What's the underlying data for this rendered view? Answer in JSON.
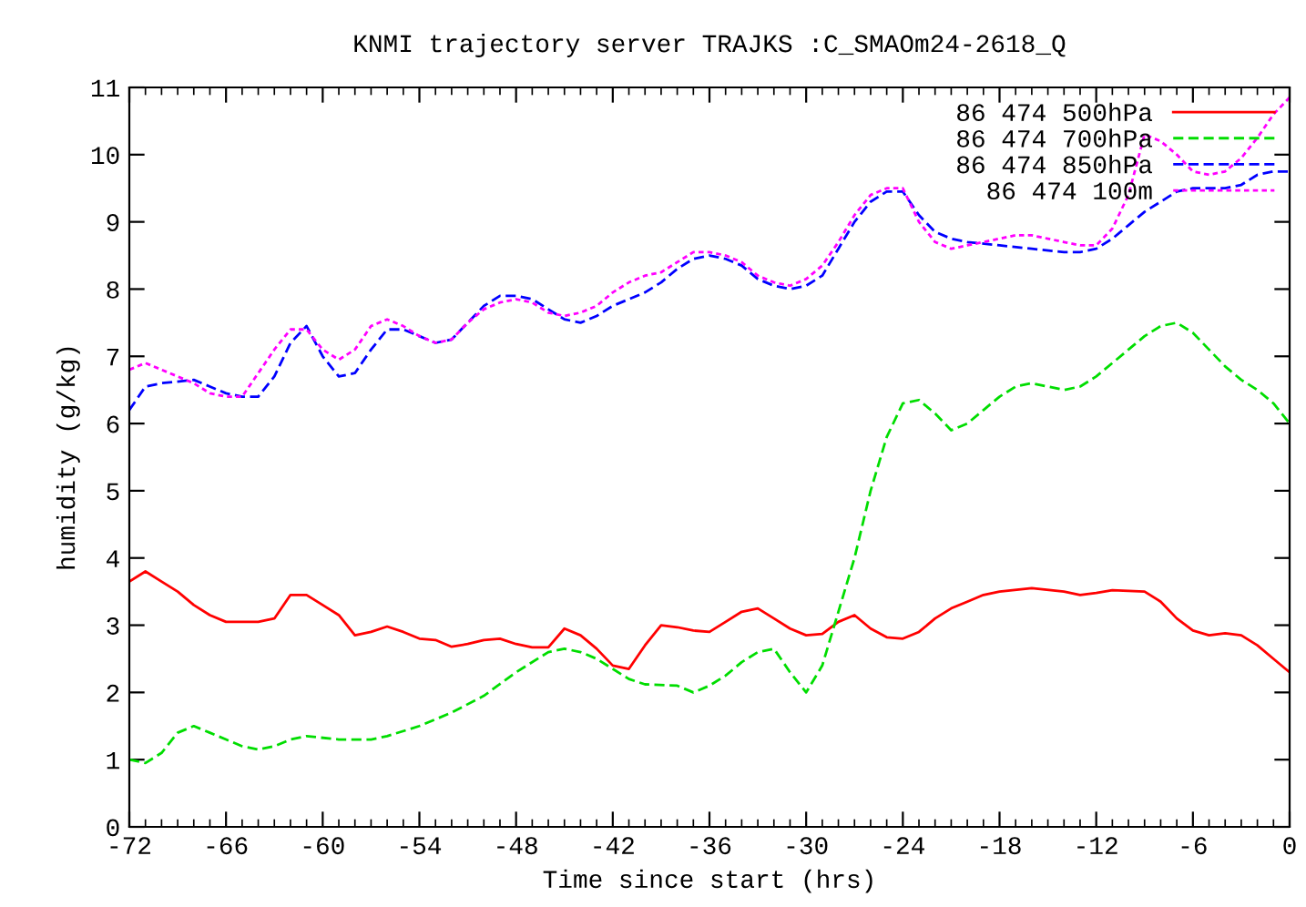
{
  "chart_data": {
    "type": "line",
    "title": "KNMI trajectory server TRAJKS :C_SMAOm24-2618_Q",
    "xlabel": "Time since start (hrs)",
    "ylabel": "humidity (g/kg)",
    "xlim": [
      -72,
      0
    ],
    "xticks": [
      -72,
      -66,
      -60,
      -54,
      -48,
      -42,
      -36,
      -30,
      -24,
      -18,
      -12,
      -6,
      0
    ],
    "ylim": [
      0,
      11
    ],
    "yticks": [
      0,
      1,
      2,
      3,
      4,
      5,
      6,
      7,
      8,
      9,
      10,
      11
    ],
    "grid": false,
    "legend": "top right",
    "marker": "none",
    "series": [
      {
        "name": "86 474 500hPa",
        "color": "#ff0000",
        "line_style": "solid",
        "x": [
          -72,
          -71,
          -70,
          -69,
          -68,
          -67,
          -66,
          -64,
          -63,
          -62,
          -61,
          -60,
          -59,
          -58,
          -57,
          -56,
          -55,
          -54,
          -53,
          -52,
          -51,
          -50,
          -49,
          -48,
          -47,
          -46,
          -45,
          -44,
          -43,
          -42,
          -41,
          -40,
          -39,
          -38,
          -37,
          -36,
          -35,
          -34,
          -33,
          -32,
          -31,
          -30,
          -29,
          -28,
          -27,
          -26,
          -25,
          -24,
          -23,
          -22,
          -21,
          -20,
          -19,
          -18,
          -16,
          -14,
          -13,
          -12,
          -11,
          -9,
          -8,
          -7,
          -6,
          -5,
          -4,
          -3,
          -2,
          -1,
          0
        ],
        "values": [
          3.65,
          3.8,
          3.65,
          3.5,
          3.3,
          3.15,
          3.05,
          3.05,
          3.1,
          3.45,
          3.45,
          3.3,
          3.15,
          2.85,
          2.9,
          2.98,
          2.9,
          2.8,
          2.78,
          2.68,
          2.72,
          2.78,
          2.8,
          2.72,
          2.67,
          2.67,
          2.95,
          2.85,
          2.65,
          2.4,
          2.35,
          2.7,
          3.0,
          2.97,
          2.92,
          2.9,
          3.05,
          3.2,
          3.25,
          3.1,
          2.95,
          2.85,
          2.87,
          3.05,
          3.15,
          2.95,
          2.82,
          2.8,
          2.9,
          3.1,
          3.25,
          3.35,
          3.45,
          3.5,
          3.55,
          3.5,
          3.45,
          3.48,
          3.52,
          3.5,
          3.35,
          3.1,
          2.92,
          2.85,
          2.88,
          2.85,
          2.7,
          2.5,
          2.3
        ]
      },
      {
        "name": "86 474 700hPa",
        "color": "#00dd00",
        "line_style": "dashed",
        "x": [
          -72,
          -71,
          -70,
          -69,
          -68,
          -67,
          -66,
          -65,
          -64,
          -63,
          -62,
          -61,
          -59,
          -57,
          -56,
          -54,
          -52,
          -50,
          -48,
          -46,
          -45,
          -44,
          -43,
          -42,
          -41,
          -40,
          -38,
          -37,
          -36,
          -35,
          -34,
          -33,
          -32,
          -31,
          -30,
          -29,
          -28,
          -27,
          -26,
          -25,
          -24,
          -23,
          -22,
          -21,
          -20,
          -19,
          -18,
          -17,
          -16,
          -15,
          -14,
          -13,
          -12,
          -11,
          -10,
          -9,
          -8,
          -7,
          -6,
          -5,
          -4,
          -3,
          -2,
          -1,
          0
        ],
        "values": [
          1.0,
          0.95,
          1.1,
          1.4,
          1.5,
          1.4,
          1.3,
          1.2,
          1.15,
          1.2,
          1.3,
          1.35,
          1.3,
          1.3,
          1.35,
          1.5,
          1.7,
          1.95,
          2.3,
          2.6,
          2.65,
          2.6,
          2.5,
          2.35,
          2.2,
          2.12,
          2.1,
          2.0,
          2.1,
          2.25,
          2.45,
          2.6,
          2.65,
          2.3,
          2.0,
          2.4,
          3.2,
          4.0,
          5.0,
          5.8,
          6.3,
          6.35,
          6.15,
          5.9,
          6.0,
          6.2,
          6.4,
          6.55,
          6.6,
          6.55,
          6.5,
          6.55,
          6.7,
          6.9,
          7.1,
          7.3,
          7.45,
          7.5,
          7.35,
          7.1,
          6.85,
          6.65,
          6.5,
          6.3,
          6.0
        ]
      },
      {
        "name": "86 474 850hPa",
        "color": "#0000ff",
        "line_style": "dashed",
        "x": [
          -72,
          -71,
          -70,
          -68,
          -67,
          -66,
          -65,
          -64,
          -63,
          -62,
          -61,
          -60,
          -59,
          -58,
          -57,
          -56,
          -55,
          -54,
          -53,
          -52,
          -51,
          -50,
          -49,
          -48,
          -47,
          -46,
          -45,
          -44,
          -43,
          -42,
          -41,
          -40,
          -39,
          -38,
          -37,
          -36,
          -35,
          -34,
          -33,
          -32,
          -31,
          -30,
          -29,
          -28,
          -27,
          -26,
          -25,
          -24,
          -23,
          -22,
          -21,
          -20,
          -18,
          -16,
          -14,
          -13,
          -12,
          -11,
          -10,
          -9,
          -8,
          -7,
          -6,
          -4,
          -3,
          -2,
          -1,
          0
        ],
        "values": [
          6.2,
          6.55,
          6.6,
          6.65,
          6.55,
          6.45,
          6.4,
          6.4,
          6.7,
          7.2,
          7.45,
          7.0,
          6.7,
          6.75,
          7.1,
          7.4,
          7.4,
          7.3,
          7.2,
          7.25,
          7.5,
          7.75,
          7.9,
          7.9,
          7.85,
          7.7,
          7.55,
          7.5,
          7.6,
          7.75,
          7.85,
          7.95,
          8.1,
          8.3,
          8.45,
          8.5,
          8.45,
          8.35,
          8.15,
          8.05,
          8.0,
          8.05,
          8.2,
          8.6,
          9.0,
          9.3,
          9.45,
          9.45,
          9.1,
          8.85,
          8.75,
          8.7,
          8.65,
          8.6,
          8.55,
          8.55,
          8.6,
          8.75,
          8.95,
          9.15,
          9.3,
          9.45,
          9.5,
          9.5,
          9.55,
          9.7,
          9.75,
          9.75
        ]
      },
      {
        "name": "86 474 100m",
        "color": "#ff00ff",
        "line_style": "dotted",
        "x": [
          -72,
          -71,
          -70,
          -69,
          -68,
          -67,
          -66,
          -65,
          -64,
          -63,
          -62,
          -61,
          -60,
          -59,
          -58,
          -57,
          -56,
          -55,
          -54,
          -53,
          -52,
          -51,
          -50,
          -49,
          -48,
          -47,
          -46,
          -45,
          -44,
          -43,
          -42,
          -41,
          -40,
          -39,
          -38,
          -37,
          -36,
          -35,
          -34,
          -33,
          -32,
          -31,
          -30,
          -29,
          -28,
          -27,
          -26,
          -25,
          -24,
          -23,
          -22,
          -21,
          -20,
          -18,
          -17,
          -16,
          -15,
          -14,
          -13,
          -12,
          -11,
          -10,
          -9,
          -8,
          -7,
          -6,
          -5,
          -4,
          -3,
          -2,
          -1,
          0
        ],
        "values": [
          6.8,
          6.9,
          6.8,
          6.7,
          6.6,
          6.45,
          6.4,
          6.4,
          6.75,
          7.1,
          7.4,
          7.4,
          7.1,
          6.95,
          7.1,
          7.45,
          7.55,
          7.45,
          7.3,
          7.2,
          7.25,
          7.5,
          7.7,
          7.8,
          7.85,
          7.8,
          7.65,
          7.6,
          7.65,
          7.75,
          7.95,
          8.1,
          8.2,
          8.25,
          8.4,
          8.55,
          8.55,
          8.5,
          8.4,
          8.2,
          8.1,
          8.05,
          8.15,
          8.35,
          8.7,
          9.1,
          9.4,
          9.5,
          9.5,
          9.0,
          8.7,
          8.6,
          8.65,
          8.75,
          8.8,
          8.8,
          8.75,
          8.7,
          8.65,
          8.65,
          8.9,
          9.4,
          10.3,
          10.2,
          10.0,
          9.75,
          9.7,
          9.75,
          9.95,
          10.25,
          10.6,
          10.85
        ]
      }
    ]
  }
}
